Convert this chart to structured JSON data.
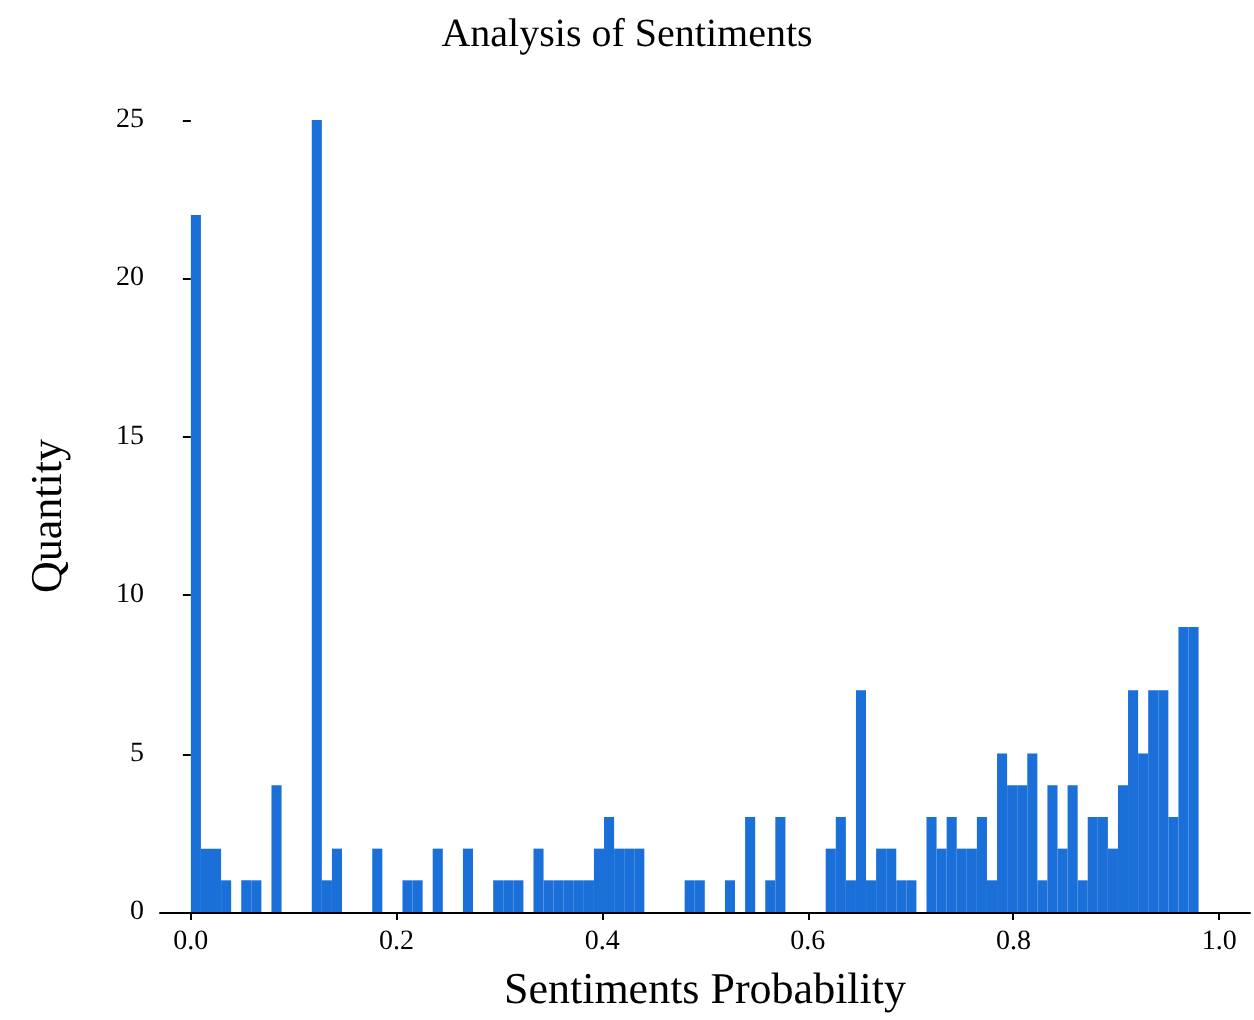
{
  "chart_data": {
    "type": "histogram",
    "title": "Analysis of Sentiments",
    "xlabel": "Sentiments Probability",
    "ylabel": "Quantity",
    "color": "#1a6fd8",
    "bins": [
      0,
      0.0098,
      0.0196,
      0.0294,
      0.0392,
      0.049,
      0.0588,
      0.0686,
      0.0784,
      0.0882,
      0.098,
      0.1078,
      0.1176,
      0.1274,
      0.1372,
      0.147,
      0.1568,
      0.1666,
      0.1764,
      0.1862,
      0.196,
      0.2058,
      0.2156,
      0.2254,
      0.2352,
      0.245,
      0.2548,
      0.2646,
      0.2744,
      0.2842,
      0.294,
      0.3038,
      0.3136,
      0.3234,
      0.3332,
      0.343,
      0.3528,
      0.3626,
      0.3724,
      0.3822,
      0.392,
      0.4018,
      0.4116,
      0.4214,
      0.4312,
      0.441,
      0.4508,
      0.4606,
      0.4704,
      0.4802,
      0.49,
      0.4998,
      0.5096,
      0.5194,
      0.5292,
      0.539,
      0.5488,
      0.5586,
      0.5684,
      0.5782,
      0.588,
      0.5978,
      0.6076,
      0.6174,
      0.6272,
      0.637,
      0.6468,
      0.6566,
      0.6664,
      0.6762,
      0.686,
      0.6958,
      0.7056,
      0.7154,
      0.7252,
      0.735,
      0.7448,
      0.7546,
      0.7644,
      0.7742,
      0.784,
      0.7938,
      0.8036,
      0.8134,
      0.8232,
      0.833,
      0.8428,
      0.8526,
      0.8624,
      0.8722,
      0.882,
      0.8918,
      0.9016,
      0.9114,
      0.9212,
      0.931,
      0.9408,
      0.9506,
      0.9604,
      0.9702,
      0.98
    ],
    "values": [
      22,
      2,
      2,
      1,
      0,
      1,
      1,
      0,
      4,
      0,
      0,
      0,
      25,
      1,
      2,
      0,
      0,
      0,
      2,
      0,
      0,
      1,
      1,
      0,
      2,
      0,
      0,
      2,
      0,
      0,
      1,
      1,
      1,
      0,
      2,
      1,
      1,
      1,
      1,
      1,
      2,
      3,
      2,
      2,
      2,
      0,
      0,
      0,
      0,
      1,
      1,
      0,
      0,
      1,
      0,
      3,
      0,
      1,
      3,
      0,
      0,
      0,
      0,
      2,
      3,
      1,
      7,
      1,
      2,
      2,
      1,
      1,
      0,
      3,
      2,
      3,
      2,
      2,
      3,
      1,
      5,
      4,
      4,
      5,
      1,
      4,
      2,
      4,
      1,
      3,
      3,
      2,
      4,
      7,
      5,
      7,
      7,
      3,
      9,
      9
    ],
    "xlim": [
      -0.03,
      1.03
    ],
    "xticks": [
      {
        "value": 0,
        "label": "0.0"
      },
      {
        "value": 0.2,
        "label": "0.2"
      },
      {
        "value": 0.4,
        "label": "0.4"
      },
      {
        "value": 0.6,
        "label": "0.6"
      },
      {
        "value": 0.8,
        "label": "0.8"
      },
      {
        "value": 1,
        "label": "1.0"
      }
    ],
    "ylim": [
      0,
      25
    ],
    "yticks": [
      0,
      5,
      10,
      15,
      20,
      25
    ],
    "grid": false
  }
}
